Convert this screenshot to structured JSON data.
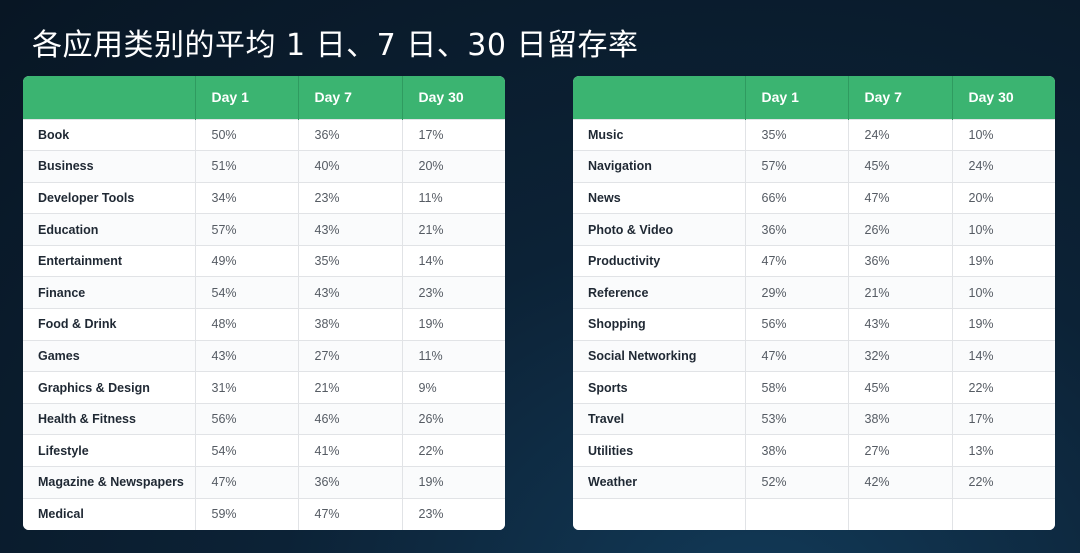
{
  "title": "各应用类别的平均 1 日、7 日、30 日留存率",
  "headers": [
    "",
    "Day 1",
    "Day 7",
    "Day 30"
  ],
  "left_table": [
    [
      "Book",
      "50%",
      "36%",
      "17%"
    ],
    [
      "Business",
      "51%",
      "40%",
      "20%"
    ],
    [
      "Developer Tools",
      "34%",
      "23%",
      "11%"
    ],
    [
      "Education",
      "57%",
      "43%",
      "21%"
    ],
    [
      "Entertainment",
      "49%",
      "35%",
      "14%"
    ],
    [
      "Finance",
      "54%",
      "43%",
      "23%"
    ],
    [
      "Food & Drink",
      "48%",
      "38%",
      "19%"
    ],
    [
      "Games",
      "43%",
      "27%",
      "11%"
    ],
    [
      "Graphics & Design",
      "31%",
      "21%",
      "9%"
    ],
    [
      "Health & Fitness",
      "56%",
      "46%",
      "26%"
    ],
    [
      "Lifestyle",
      "54%",
      "41%",
      "22%"
    ],
    [
      "Magazine & Newspapers",
      "47%",
      "36%",
      "19%"
    ],
    [
      "Medical",
      "59%",
      "47%",
      "23%"
    ]
  ],
  "right_table": [
    [
      "Music",
      "35%",
      "24%",
      "10%"
    ],
    [
      "Navigation",
      "57%",
      "45%",
      "24%"
    ],
    [
      "News",
      "66%",
      "47%",
      "20%"
    ],
    [
      "Photo & Video",
      "36%",
      "26%",
      "10%"
    ],
    [
      "Productivity",
      "47%",
      "36%",
      "19%"
    ],
    [
      "Reference",
      "29%",
      "21%",
      "10%"
    ],
    [
      "Shopping",
      "56%",
      "43%",
      "19%"
    ],
    [
      "Social Networking",
      "47%",
      "32%",
      "14%"
    ],
    [
      "Sports",
      "58%",
      "45%",
      "22%"
    ],
    [
      "Travel",
      "53%",
      "38%",
      "17%"
    ],
    [
      "Utilities",
      "38%",
      "27%",
      "13%"
    ],
    [
      "Weather",
      "52%",
      "42%",
      "22%"
    ],
    [
      "",
      "",
      "",
      ""
    ]
  ]
}
